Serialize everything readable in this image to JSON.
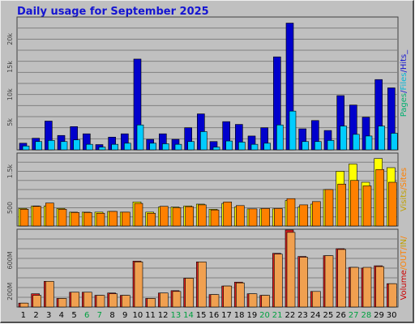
{
  "title": "Daily usage for September 2025",
  "chart_data": [
    {
      "type": "bar",
      "panel": "hits",
      "x": [
        1,
        2,
        3,
        4,
        5,
        6,
        7,
        8,
        9,
        10,
        11,
        12,
        13,
        14,
        15,
        16,
        17,
        18,
        19,
        20,
        21,
        22,
        23,
        24,
        25,
        26,
        27,
        28,
        29,
        30
      ],
      "series": [
        {
          "name": "Hits",
          "color": "#0000cc",
          "values": [
            1200,
            2100,
            5200,
            2600,
            4200,
            2900,
            950,
            2300,
            2900,
            16400,
            1900,
            2900,
            1900,
            4000,
            6500,
            1500,
            5100,
            4600,
            2500,
            4000,
            16800,
            22900,
            3800,
            5300,
            3500,
            9800,
            8100,
            5900,
            12700,
            11200
          ]
        },
        {
          "name": "Files",
          "color": "#00ccff",
          "values": [
            700,
            1500,
            1700,
            1500,
            1800,
            1000,
            500,
            1000,
            1200,
            4500,
            1200,
            1100,
            1000,
            1500,
            3300,
            500,
            1600,
            1400,
            1000,
            1200,
            4500,
            7000,
            1500,
            1500,
            1700,
            4300,
            2800,
            2500,
            4300,
            3000
          ]
        },
        {
          "name": "Pages",
          "color": "#00b070",
          "values": [
            0,
            0,
            0,
            0,
            0,
            0,
            0,
            0,
            0,
            0,
            0,
            0,
            0,
            0,
            0,
            0,
            0,
            0,
            0,
            0,
            0,
            0,
            0,
            0,
            0,
            0,
            0,
            0,
            0,
            0
          ]
        }
      ],
      "y_ticks": [
        "5k",
        "10k",
        "15k",
        "20k"
      ],
      "ylim": [
        0,
        24000
      ],
      "legend": [
        {
          "label": "Pages",
          "color": "#00b070"
        },
        {
          "label": "/",
          "color": "#1414d2"
        },
        {
          "label": "Files",
          "color": "#00b8d8"
        },
        {
          "label": "/",
          "color": "#1414d2"
        },
        {
          "label": "Hits",
          "color": "#1414d2"
        },
        {
          "label": "_",
          "color": "#1414d2"
        }
      ]
    },
    {
      "type": "bar",
      "panel": "visits",
      "series": [
        {
          "name": "Visits",
          "color": "#ffff00",
          "values": [
            480,
            550,
            550,
            480,
            380,
            380,
            380,
            400,
            380,
            660,
            380,
            520,
            520,
            550,
            600,
            460,
            620,
            520,
            470,
            470,
            470,
            700,
            520,
            600,
            1000,
            1500,
            1700,
            1200,
            1850,
            1600
          ]
        },
        {
          "name": "Sites",
          "color": "#ff8000",
          "values": [
            460,
            540,
            630,
            460,
            370,
            370,
            350,
            400,
            380,
            620,
            350,
            540,
            500,
            530,
            580,
            440,
            660,
            560,
            470,
            480,
            480,
            750,
            580,
            670,
            1000,
            1150,
            1250,
            1100,
            1550,
            1200
          ]
        }
      ],
      "y_ticks": [
        "500",
        "1.5k"
      ],
      "ylim": [
        0,
        2000
      ],
      "legend": [
        {
          "label": "Visits",
          "color": "#c0a000"
        },
        {
          "label": "/",
          "color": "#ff8000"
        },
        {
          "label": "Sites",
          "color": "#ff8000"
        }
      ]
    },
    {
      "type": "bar",
      "panel": "volume",
      "series": [
        {
          "name": "Volume",
          "color": "#dd2020",
          "values": [
            50,
            170,
            330,
            110,
            190,
            190,
            150,
            180,
            150,
            590,
            110,
            180,
            210,
            370,
            580,
            160,
            270,
            320,
            170,
            150,
            690,
            990,
            650,
            200,
            660,
            750,
            510,
            500,
            530,
            300
          ]
        },
        {
          "name": "OUT",
          "color": "#f0a050",
          "values": [
            50,
            150,
            330,
            110,
            190,
            190,
            150,
            170,
            150,
            580,
            110,
            180,
            200,
            370,
            580,
            160,
            270,
            310,
            170,
            150,
            680,
            960,
            640,
            200,
            660,
            740,
            510,
            510,
            520,
            300
          ]
        }
      ],
      "y_ticks": [
        "200M",
        "600M"
      ],
      "ylim": [
        0,
        1000
      ],
      "legend": [
        {
          "label": "Volume",
          "color": "#cc0000"
        },
        {
          "label": "/",
          "color": "#ff8000"
        },
        {
          "label": "OUT",
          "color": "#ff8000"
        },
        {
          "label": "/",
          "color": "#ff8000"
        },
        {
          "label": "IN",
          "color": "#c0a000"
        },
        {
          "label": "/",
          "color": "#ff8000"
        }
      ]
    }
  ],
  "day_labels": [
    "1",
    "2",
    "3",
    "4",
    "5",
    "6",
    "7",
    "8",
    "9",
    "10",
    "11",
    "12",
    "13",
    "14",
    "15",
    "16",
    "17",
    "18",
    "19",
    "20",
    "21",
    "22",
    "23",
    "24",
    "25",
    "26",
    "27",
    "28",
    "29",
    "30"
  ],
  "weekend_days": [
    6,
    7,
    13,
    14,
    20,
    21,
    27,
    28
  ],
  "weekend_color": "#00a040",
  "weekday_color": "#000000"
}
